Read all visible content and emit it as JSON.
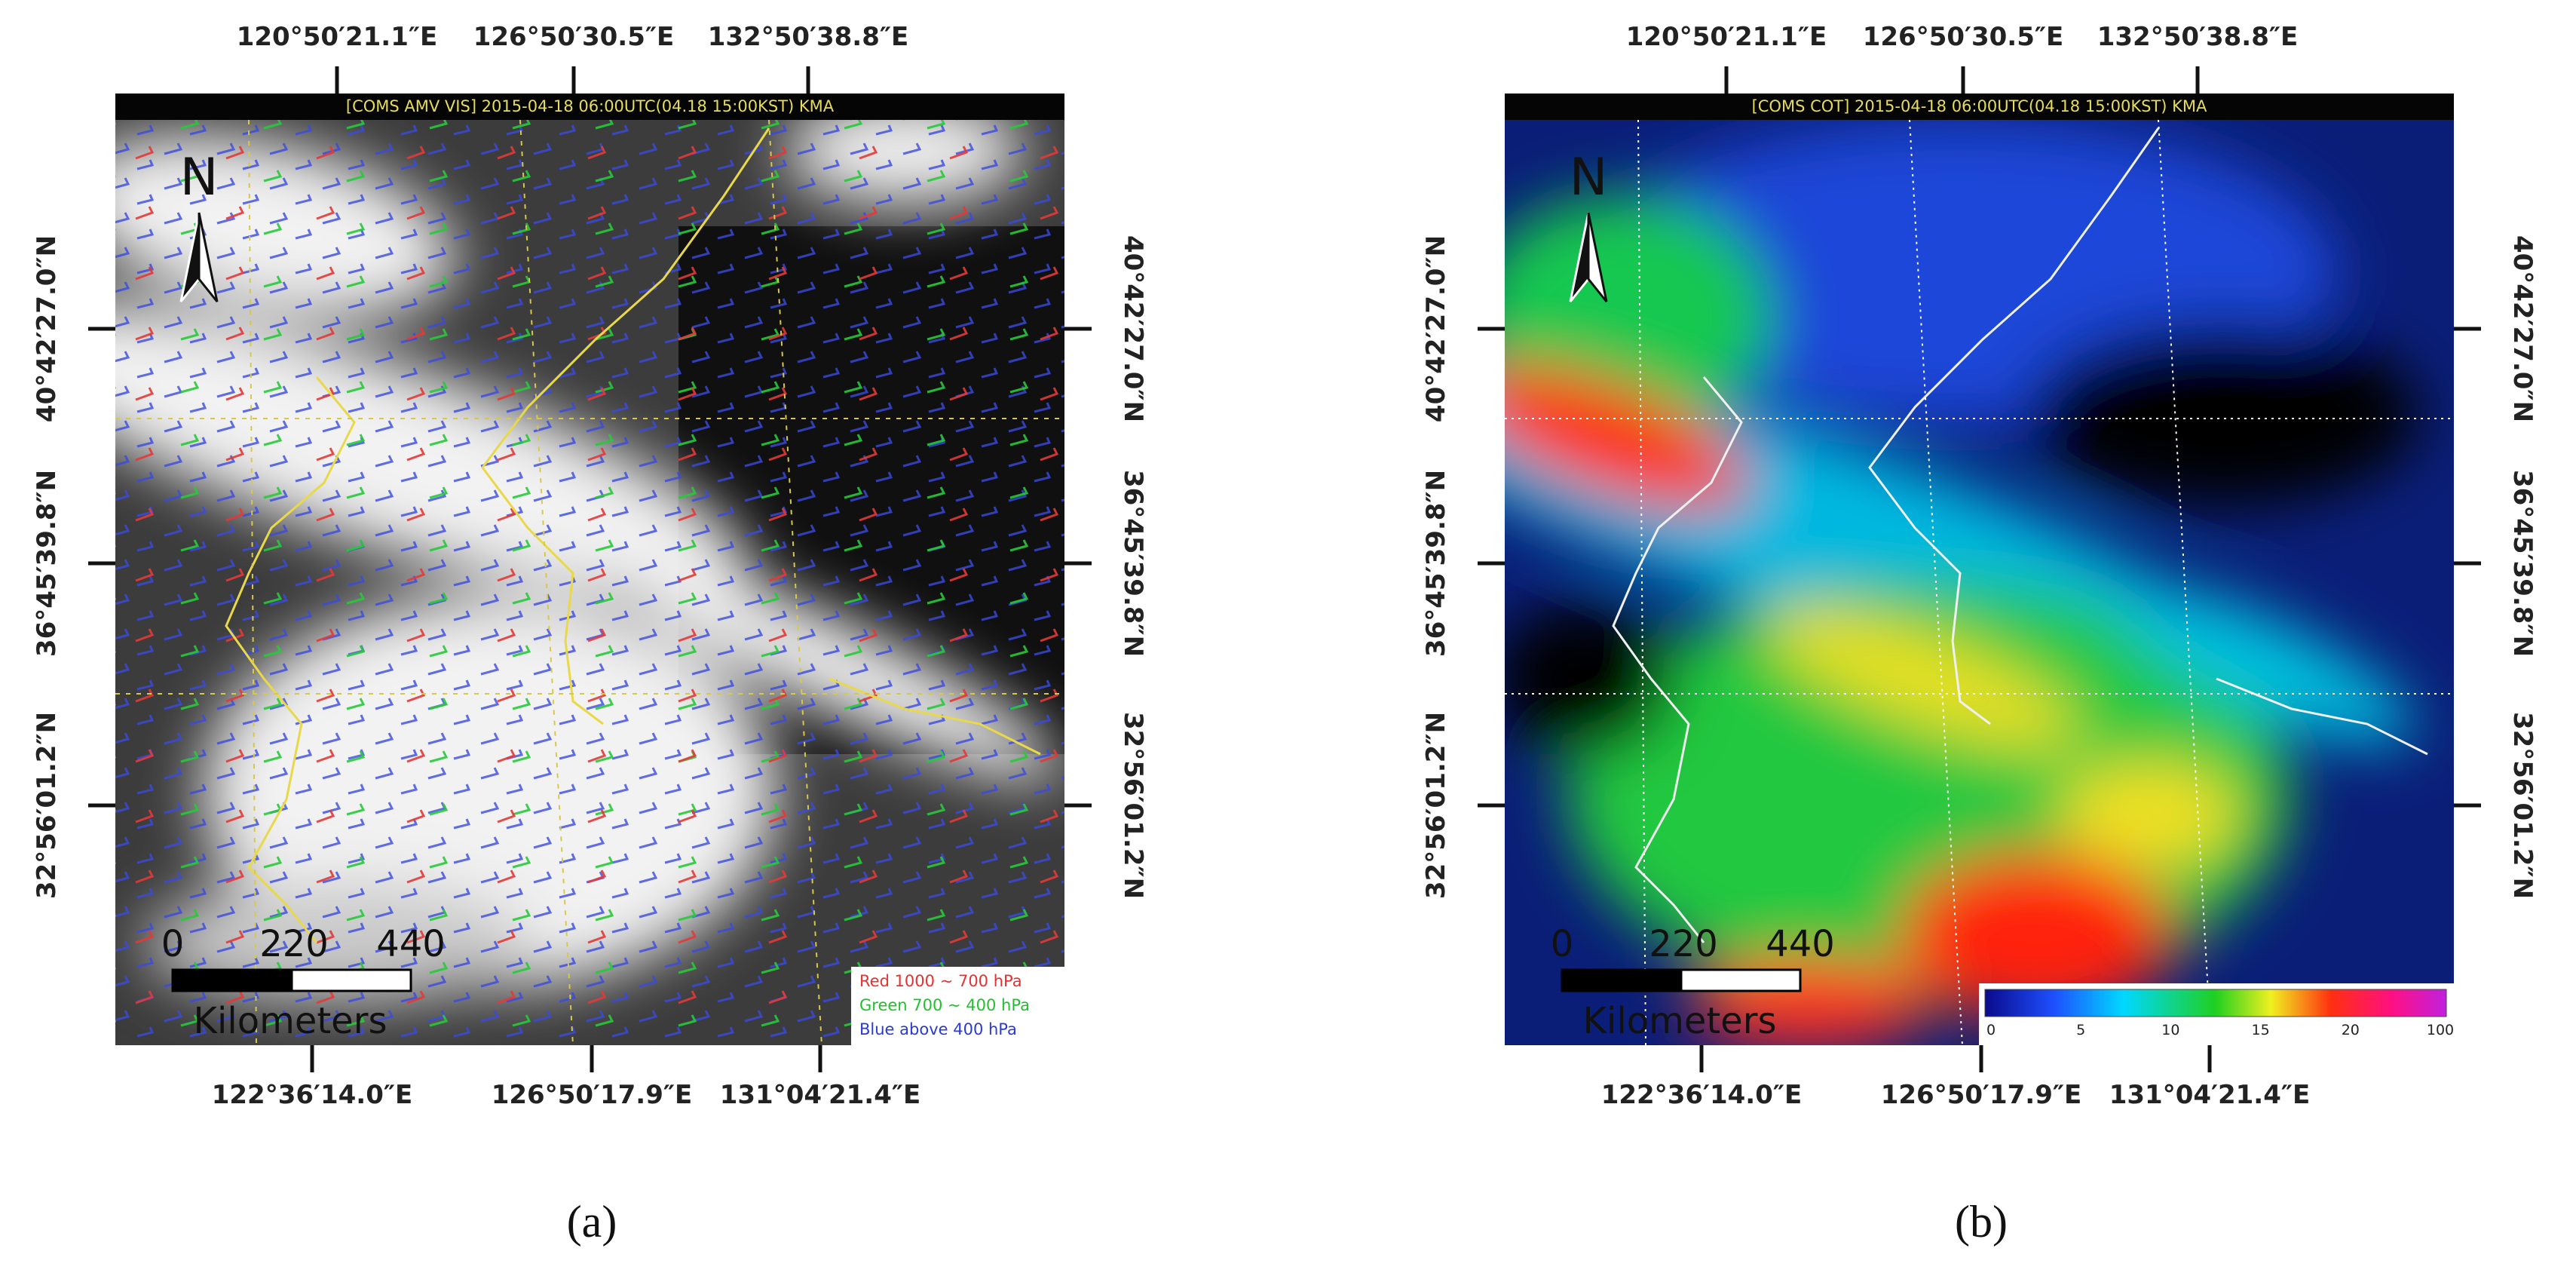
{
  "panels": [
    {
      "label": "(a)",
      "header": "[COMS  AMV VIS]  2015-04-18  06:00UTC(04.18  15:00KST)  KMA",
      "top_ticks": [
        "120°50′21.1″E",
        "126°50′30.5″E",
        "132°50′38.8″E"
      ],
      "bottom_ticks": [
        "122°36′14.0″E",
        "126°50′17.9″E",
        "131°04′21.4″E"
      ],
      "left_ticks": [
        "40°42′27.0″N",
        "36°45′39.8″N",
        "32°56′01.2″N"
      ],
      "right_ticks": [
        "40°42′27.0″N",
        "36°45′39.8″N",
        "32°56′01.2″N"
      ],
      "north": "N",
      "scale_bar": {
        "labels": [
          0,
          220,
          440
        ],
        "unit": "Kilometers"
      },
      "legend": [
        "Red 1000 ~ 700 hPa",
        "Green 700 ~ 400 hPa",
        "Blue above 400 hPa"
      ]
    },
    {
      "label": "(b)",
      "header": "[COMS  COT]  2015-04-18  06:00UTC(04.18  15:00KST)  KMA",
      "top_ticks": [
        "120°50′21.1″E",
        "126°50′30.5″E",
        "132°50′38.8″E"
      ],
      "bottom_ticks": [
        "122°36′14.0″E",
        "126°50′17.9″E",
        "131°04′21.4″E"
      ],
      "left_ticks": [
        "40°42′27.0″N",
        "36°45′39.8″N",
        "32°56′01.2″N"
      ],
      "right_ticks": [
        "40°42′27.0″N",
        "36°45′39.8″N",
        "32°56′01.2″N"
      ],
      "north": "N",
      "scale_bar": {
        "labels": [
          0,
          220,
          440
        ],
        "unit": "Kilometers"
      },
      "colorbar": [
        0,
        5,
        10,
        15,
        20,
        100
      ]
    }
  ]
}
